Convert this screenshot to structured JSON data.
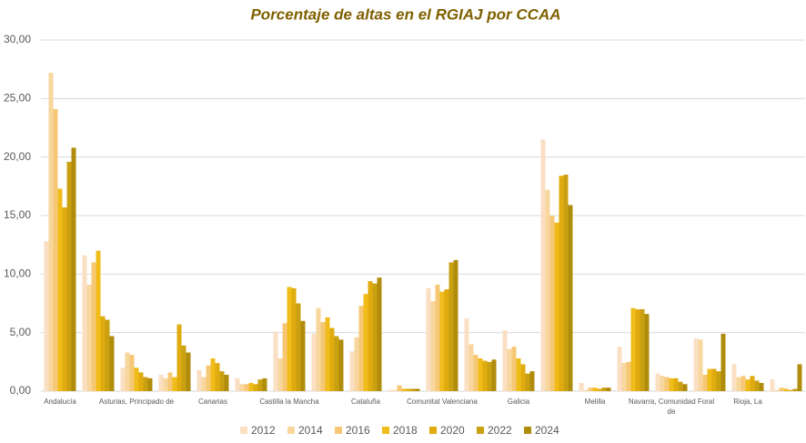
{
  "chart_data": {
    "type": "bar",
    "title": "Porcentaje de altas en el RGIAJ por CCAA",
    "categories": [
      "Andalucía",
      null,
      "Asturias, Principado de",
      null,
      "Canarias",
      null,
      "Castilla la Mancha",
      null,
      "Cataluña",
      null,
      "Comunitat Valenciana",
      null,
      "Galicia",
      null,
      "Melilla",
      null,
      "Navarra, Comunidad Foral de",
      null,
      "Rioja, La",
      null
    ],
    "series": [
      {
        "name": "2012",
        "color": "#fadfc3",
        "values": [
          12.8,
          11.6,
          2.0,
          1.4,
          1.8,
          1.1,
          5.1,
          4.9,
          3.4,
          0.1,
          8.8,
          6.2,
          5.2,
          21.5,
          0.7,
          3.8,
          1.5,
          4.5,
          2.3,
          1.0
        ]
      },
      {
        "name": "2014",
        "color": "#f8d79e",
        "values": [
          27.2,
          9.1,
          3.3,
          1.1,
          1.2,
          0.6,
          2.8,
          7.1,
          4.6,
          0.1,
          7.7,
          4.0,
          3.6,
          17.2,
          0.1,
          2.4,
          1.3,
          4.4,
          1.2,
          0.1
        ]
      },
      {
        "name": "2016",
        "color": "#f6c875",
        "values": [
          24.1,
          11.0,
          3.1,
          1.6,
          2.2,
          0.6,
          5.8,
          5.9,
          7.3,
          0.5,
          9.1,
          3.1,
          3.8,
          15.0,
          0.3,
          2.5,
          1.2,
          1.4,
          1.3,
          0.3
        ]
      },
      {
        "name": "2018",
        "color": "#f0bc1a",
        "values": [
          17.3,
          12.0,
          2.0,
          1.2,
          2.8,
          0.7,
          8.9,
          6.3,
          8.3,
          0.2,
          8.5,
          2.8,
          2.8,
          14.4,
          0.3,
          7.1,
          1.1,
          1.9,
          1.0,
          0.2
        ]
      },
      {
        "name": "2020",
        "color": "#dfab0e",
        "values": [
          15.7,
          6.4,
          1.6,
          5.7,
          2.4,
          0.6,
          8.8,
          5.4,
          9.4,
          0.2,
          8.7,
          2.6,
          2.3,
          18.4,
          0.2,
          7.0,
          1.1,
          1.9,
          1.3,
          0.1
        ]
      },
      {
        "name": "2022",
        "color": "#c9a011",
        "values": [
          19.6,
          6.1,
          1.2,
          3.9,
          1.7,
          1.0,
          7.5,
          4.7,
          9.2,
          0.2,
          11.0,
          2.5,
          1.5,
          18.5,
          0.3,
          7.0,
          0.8,
          1.7,
          0.9,
          0.2
        ]
      },
      {
        "name": "2024",
        "color": "#b08c0c",
        "values": [
          20.8,
          4.7,
          1.1,
          3.3,
          1.4,
          1.1,
          6.0,
          4.4,
          9.7,
          0.2,
          11.2,
          2.7,
          1.7,
          15.9,
          0.3,
          6.6,
          0.6,
          4.9,
          0.7,
          2.3
        ]
      }
    ],
    "ylim": [
      0,
      30
    ],
    "yticks": [
      {
        "value": 0,
        "label": "0,00"
      },
      {
        "value": 5,
        "label": "5,00"
      },
      {
        "value": 10,
        "label": "10,00"
      },
      {
        "value": 15,
        "label": "15,00"
      },
      {
        "value": 20,
        "label": "20,00"
      },
      {
        "value": 25,
        "label": "25,00"
      },
      {
        "value": 30,
        "label": "30,00"
      }
    ],
    "grid": true
  }
}
